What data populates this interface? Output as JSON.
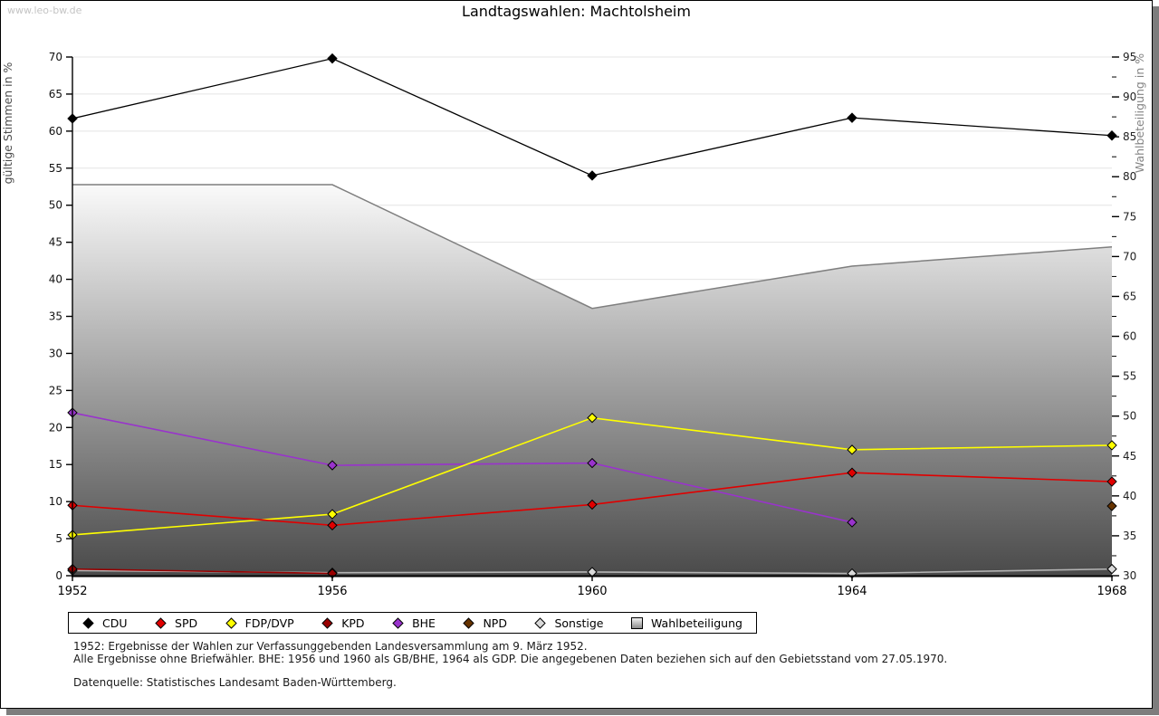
{
  "page": {
    "watermark": "www.leo-bw.de",
    "title": "Landtagswahlen: Machtolsheim"
  },
  "footnotes": {
    "line1": "1952: Ergebnisse der Wahlen zur Verfassunggebenden Landesversammlung am 9. März 1952.",
    "line2": "Alle Ergebnisse ohne Briefwähler. BHE: 1956 und 1960 als GB/BHE, 1964 als GDP. Die angegebenen Daten beziehen sich auf den Gebietsstand vom 27.05.1970.",
    "source": "Datenquelle: Statistisches Landesamt Baden-Württemberg."
  },
  "chart_data": {
    "type": "line",
    "title": "Landtagswahlen: Machtolsheim",
    "x": [
      1952,
      1956,
      1960,
      1964,
      1968
    ],
    "x_tick_labels": [
      "1952",
      "1956",
      "1960",
      "1964",
      "1968"
    ],
    "grid": true,
    "left_axis": {
      "label": "gültige Stimmen in %",
      "min": 0,
      "max": 70,
      "tick_step": 5
    },
    "right_axis": {
      "label": "Wahlbeteiligung in %",
      "min": 30,
      "max": 95,
      "tick_step": 5,
      "minor_tick_step": 2.5
    },
    "series": [
      {
        "name": "CDU",
        "color": "#000000",
        "axis": "left",
        "x": [
          1952,
          1956,
          1960,
          1964,
          1968
        ],
        "values": [
          61.7,
          69.8,
          54.0,
          61.8,
          59.4
        ]
      },
      {
        "name": "SPD",
        "color": "#e00000",
        "axis": "left",
        "x": [
          1952,
          1956,
          1960,
          1964,
          1968
        ],
        "values": [
          9.5,
          6.8,
          9.6,
          13.9,
          12.7
        ]
      },
      {
        "name": "FDP/DVP",
        "color": "#ffff00",
        "axis": "left",
        "x": [
          1952,
          1956,
          1960,
          1964,
          1968
        ],
        "values": [
          5.5,
          8.3,
          21.3,
          17.0,
          17.6
        ]
      },
      {
        "name": "KPD",
        "color": "#990000",
        "axis": "left",
        "x": [
          1952,
          1956
        ],
        "values": [
          0.9,
          0.3
        ]
      },
      {
        "name": "BHE",
        "color": "#9933cc",
        "axis": "left",
        "x": [
          1952,
          1956,
          1960,
          1964
        ],
        "values": [
          22.0,
          14.9,
          15.2,
          7.2
        ]
      },
      {
        "name": "NPD",
        "color": "#663300",
        "axis": "left",
        "x": [
          1968
        ],
        "values": [
          9.4
        ]
      },
      {
        "name": "Sonstige",
        "color": "#b4b4b4",
        "marker_color": "#d9d9d9",
        "axis": "left",
        "x": [
          1952,
          1956,
          1960,
          1964,
          1968
        ],
        "values": [
          0.7,
          0.4,
          0.5,
          0.3,
          0.9
        ]
      }
    ],
    "area_series": {
      "name": "Wahlbeteiligung",
      "axis": "right",
      "stroke": "#7f7f7f",
      "fill_top": "#fafafa",
      "fill_bottom": "#4a4a4a",
      "x": [
        1952,
        1956,
        1960,
        1964,
        1968
      ],
      "values": [
        79.0,
        79.0,
        63.5,
        68.8,
        71.2
      ]
    },
    "legend_position": "bottom",
    "legend_order": [
      "CDU",
      "SPD",
      "FDP/DVP",
      "KPD",
      "BHE",
      "NPD",
      "Sonstige",
      "Wahlbeteiligung"
    ]
  }
}
